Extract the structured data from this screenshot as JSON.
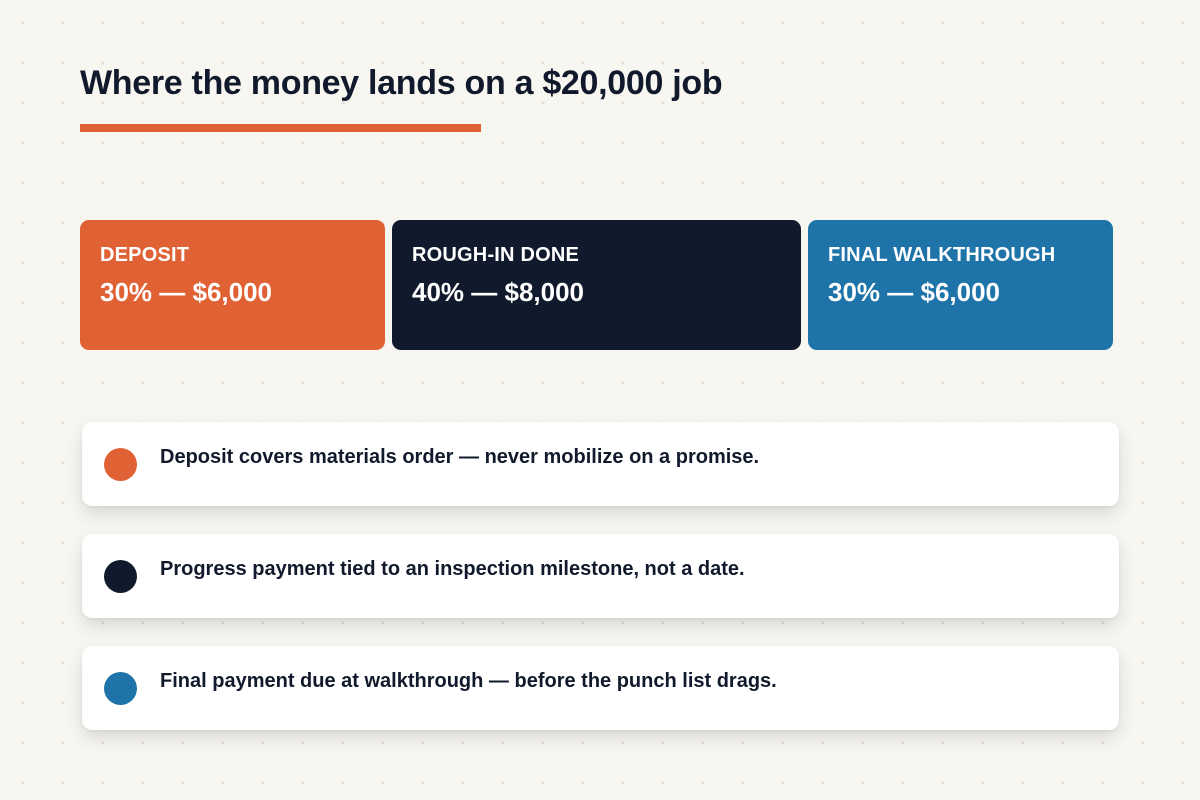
{
  "title": "Where the money lands on a $20,000 job",
  "colors": {
    "accent": "#e06134",
    "navy": "#111a2c",
    "blue": "#1e73a8",
    "background": "#f8f6f1"
  },
  "stages": [
    {
      "label": "DEPOSIT",
      "amount": "30% — $6,000",
      "percent": 30,
      "value": 6000,
      "color": "#e06134"
    },
    {
      "label": "ROUGH-IN DONE",
      "amount": "40% — $8,000",
      "percent": 40,
      "value": 8000,
      "color": "#111a2c"
    },
    {
      "label": "FINAL WALKTHROUGH",
      "amount": "30% — $6,000",
      "percent": 30,
      "value": 6000,
      "color": "#1e73a8"
    }
  ],
  "notes": [
    {
      "text": "Deposit covers materials order — never mobilize on a promise.",
      "color": "#e06134"
    },
    {
      "text": "Progress payment tied to an inspection milestone, not a date.",
      "color": "#111a2c"
    },
    {
      "text": "Final payment due at walkthrough — before the punch list drags.",
      "color": "#1e73a8"
    }
  ]
}
